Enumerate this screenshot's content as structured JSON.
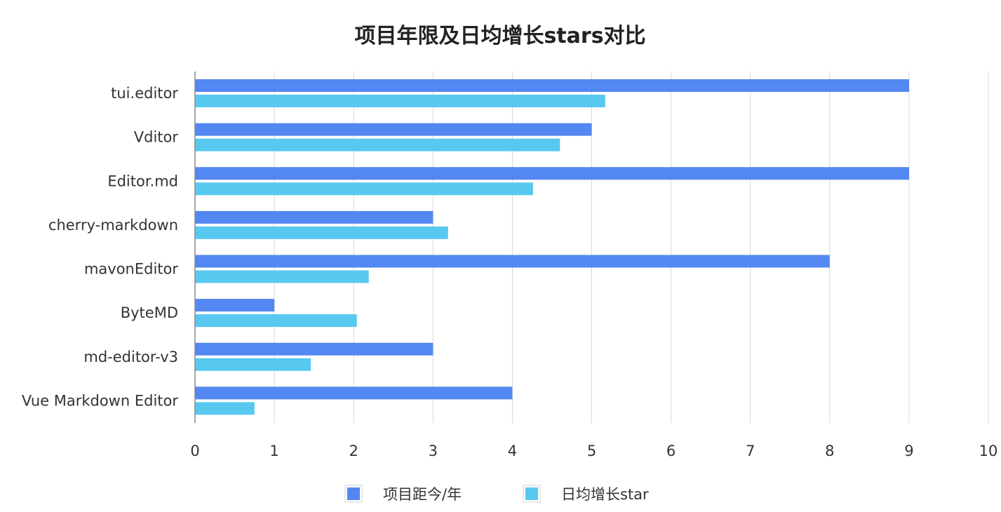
{
  "chart_data": {
    "type": "bar",
    "orientation": "horizontal",
    "title": "项目年限及日均增长stars对比",
    "xlabel": "",
    "ylabel": "",
    "xlim": [
      0,
      10
    ],
    "x_ticks": [
      "0",
      "1",
      "2",
      "3",
      "4",
      "5",
      "6",
      "7",
      "8",
      "9",
      "10"
    ],
    "grid": true,
    "legend_position": "bottom",
    "categories": [
      "tui.editor",
      "Vditor",
      "Editor.md",
      "cherry-markdown",
      "mavonEditor",
      "ByteMD",
      "md-editor-v3",
      "Vue Markdown Editor"
    ],
    "series": [
      {
        "name": "项目距今/年",
        "color": "#5387F1",
        "values": [
          9,
          5,
          9,
          3,
          8,
          1,
          3,
          4
        ]
      },
      {
        "name": "日均增长star",
        "color": "#59C8F0",
        "values": [
          5.17,
          4.6,
          4.26,
          3.19,
          2.19,
          2.04,
          1.46,
          0.75
        ]
      }
    ]
  }
}
